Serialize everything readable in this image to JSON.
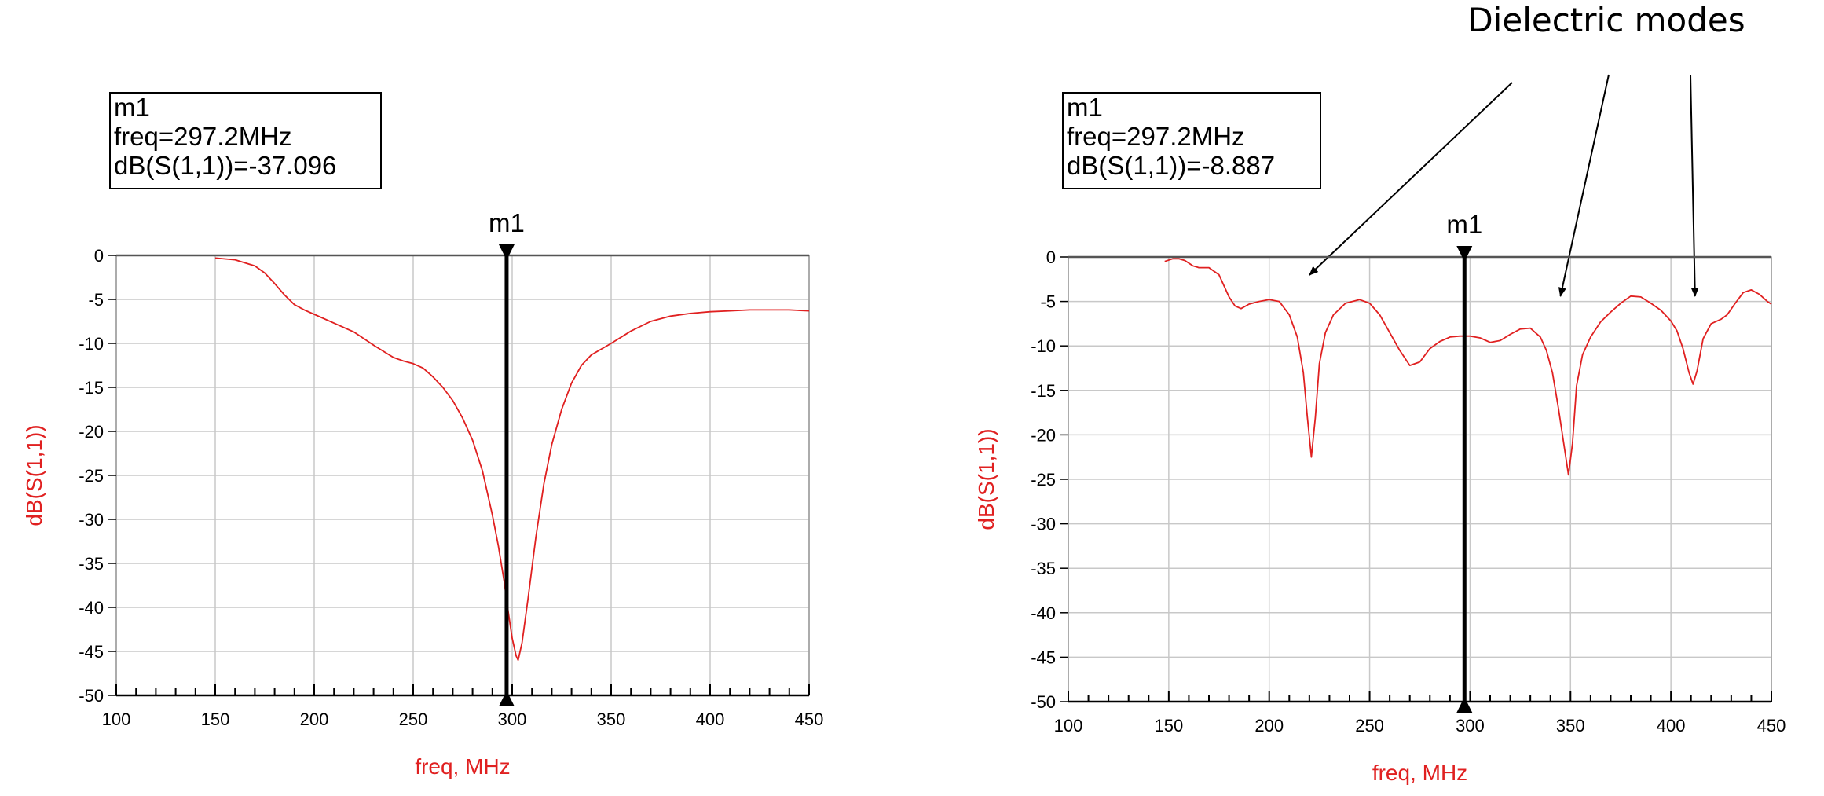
{
  "annotation": {
    "text": "Dielectric modes",
    "points_at_x": [
      220,
      345,
      412
    ]
  },
  "chart_data": [
    {
      "type": "line",
      "xlabel": "freq, MHz",
      "ylabel": "dB(S(1,1))",
      "xlim": [
        100,
        450
      ],
      "ylim": [
        -50,
        0
      ],
      "x_ticks": [
        100,
        150,
        200,
        250,
        300,
        350,
        400,
        450
      ],
      "y_ticks": [
        0,
        -5,
        -10,
        -15,
        -20,
        -25,
        -30,
        -35,
        -40,
        -45,
        -50
      ],
      "grid": true,
      "series_color": "#e02020",
      "marker": {
        "name": "m1",
        "x": 297.2,
        "lines": [
          "m1",
          "freq=297.2MHz",
          "dB(S(1,1))=-37.096"
        ]
      },
      "series": [
        {
          "x": [
            150,
            160,
            170,
            175,
            180,
            185,
            190,
            195,
            200,
            210,
            220,
            230,
            235,
            240,
            245,
            250,
            255,
            260,
            265,
            270,
            275,
            280,
            285,
            290,
            293,
            296,
            298,
            300,
            302,
            303,
            305,
            308,
            312,
            316,
            320,
            325,
            330,
            335,
            340,
            350,
            360,
            370,
            380,
            390,
            400,
            410,
            420,
            430,
            440,
            450
          ],
          "y": [
            -0.3,
            -0.5,
            -1.2,
            -2.0,
            -3.2,
            -4.5,
            -5.6,
            -6.2,
            -6.7,
            -7.7,
            -8.7,
            -10.2,
            -10.9,
            -11.6,
            -12.0,
            -12.3,
            -12.8,
            -13.8,
            -15.0,
            -16.5,
            -18.5,
            -21.0,
            -24.5,
            -29.5,
            -33.0,
            -37.1,
            -40.5,
            -43.5,
            -45.5,
            -46.0,
            -44.0,
            -39.0,
            -32.0,
            -26.0,
            -21.5,
            -17.5,
            -14.5,
            -12.5,
            -11.3,
            -10.0,
            -8.6,
            -7.5,
            -6.9,
            -6.6,
            -6.4,
            -6.3,
            -6.2,
            -6.2,
            -6.2,
            -6.3
          ]
        }
      ]
    },
    {
      "type": "line",
      "xlabel": "freq, MHz",
      "ylabel": "dB(S(1,1))",
      "xlim": [
        100,
        450
      ],
      "ylim": [
        -50,
        0
      ],
      "x_ticks": [
        100,
        150,
        200,
        250,
        300,
        350,
        400,
        450
      ],
      "y_ticks": [
        0,
        -5,
        -10,
        -15,
        -20,
        -25,
        -30,
        -35,
        -40,
        -45,
        -50
      ],
      "grid": true,
      "series_color": "#e02020",
      "marker": {
        "name": "m1",
        "x": 297.2,
        "lines": [
          "m1",
          "freq=297.2MHz",
          "dB(S(1,1))=-8.887"
        ]
      },
      "series": [
        {
          "x": [
            148,
            152,
            155,
            158,
            162,
            165,
            170,
            175,
            180,
            183,
            186,
            190,
            195,
            200,
            205,
            210,
            214,
            217,
            219,
            221,
            223,
            225,
            228,
            232,
            238,
            245,
            250,
            255,
            260,
            265,
            270,
            275,
            280,
            285,
            290,
            295,
            300,
            305,
            310,
            315,
            320,
            325,
            330,
            335,
            338,
            341,
            344,
            347,
            349,
            351,
            353,
            356,
            360,
            365,
            370,
            375,
            380,
            385,
            390,
            395,
            400,
            403,
            406,
            409,
            411,
            413,
            416,
            420,
            425,
            428,
            432,
            436,
            440,
            444,
            448,
            450
          ],
          "y": [
            -0.5,
            -0.2,
            -0.2,
            -0.4,
            -1.0,
            -1.2,
            -1.2,
            -2.0,
            -4.5,
            -5.5,
            -5.8,
            -5.3,
            -5.0,
            -4.8,
            -5.0,
            -6.5,
            -9.0,
            -13.0,
            -18.0,
            -22.5,
            -18.0,
            -12.0,
            -8.5,
            -6.5,
            -5.2,
            -4.8,
            -5.2,
            -6.5,
            -8.5,
            -10.5,
            -12.2,
            -11.8,
            -10.3,
            -9.5,
            -9.0,
            -8.9,
            -8.9,
            -9.1,
            -9.6,
            -9.4,
            -8.7,
            -8.1,
            -8.0,
            -9.0,
            -10.5,
            -13.0,
            -17.0,
            -21.5,
            -24.5,
            -21.0,
            -14.5,
            -11.0,
            -9.0,
            -7.3,
            -6.2,
            -5.2,
            -4.4,
            -4.5,
            -5.2,
            -6.0,
            -7.2,
            -8.3,
            -10.3,
            -13.0,
            -14.3,
            -12.8,
            -9.2,
            -7.5,
            -7.0,
            -6.5,
            -5.2,
            -4.0,
            -3.7,
            -4.2,
            -5.0,
            -5.3
          ]
        }
      ]
    }
  ]
}
